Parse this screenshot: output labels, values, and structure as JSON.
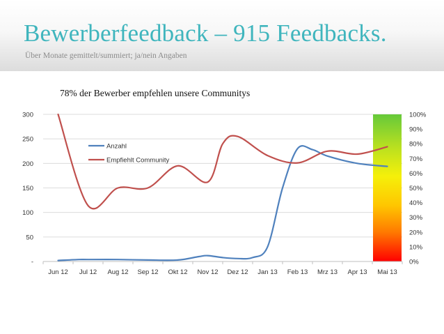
{
  "slide": {
    "title": "Bewerberfeedback – 915 Feedbacks.",
    "subtitle": "Über Monate gemittelt/summiert; ja/nein Angaben",
    "caption": "78% der Bewerber empfehlen unsere Communitys"
  },
  "chart_data": {
    "type": "line",
    "title": "78% der Bewerber empfehlen unsere Communitys",
    "xlabel": "",
    "ylabel": "",
    "categories": [
      "Jun 12",
      "Jul 12",
      "Aug 12",
      "Sep 12",
      "Okt 12",
      "Nov 12",
      "Dez 12",
      "Jan 13",
      "Feb 13",
      "Mrz 13",
      "Apr 13",
      "Mai 13"
    ],
    "left_axis": {
      "ylim": [
        0,
        300
      ],
      "tick_labels": [
        "-",
        "50",
        "100",
        "150",
        "200",
        "250",
        "300"
      ]
    },
    "right_axis": {
      "ylim": [
        0,
        100
      ],
      "tick_labels": [
        "0%",
        "10%",
        "20%",
        "30%",
        "40%",
        "50%",
        "60%",
        "70%",
        "80%",
        "90%",
        "100%"
      ]
    },
    "series": [
      {
        "name": "Anzahl",
        "axis": "left",
        "color": "#4f81bd",
        "x": [
          0,
          0.7,
          1,
          2,
          3,
          4,
          4.7,
          5,
          5.5,
          6,
          6.5,
          7,
          7.5,
          8,
          8.5,
          9,
          10,
          11
        ],
        "values": [
          2,
          4,
          4,
          4,
          3,
          3,
          10,
          12,
          8,
          6,
          8,
          30,
          150,
          230,
          228,
          215,
          200,
          194
        ]
      },
      {
        "name": "Empfiehlt Community",
        "axis": "right",
        "color": "#c0504d",
        "x": [
          0,
          1,
          2,
          3,
          4,
          5,
          5.5,
          6,
          7,
          8,
          9,
          10,
          11
        ],
        "values": [
          100,
          38,
          50,
          50,
          65,
          54,
          80,
          85,
          72,
          67,
          75,
          73,
          78
        ]
      }
    ],
    "legend": {
      "position": "top-left",
      "entries": [
        "Anzahl",
        "Empfiehlt Community"
      ]
    },
    "grid": true,
    "color_scale": {
      "description": "traffic-light gradient on right edge",
      "stops": [
        "#66c93a",
        "#b8e020",
        "#f5f00a",
        "#ffc600",
        "#ff7a00",
        "#ff0000"
      ]
    }
  }
}
